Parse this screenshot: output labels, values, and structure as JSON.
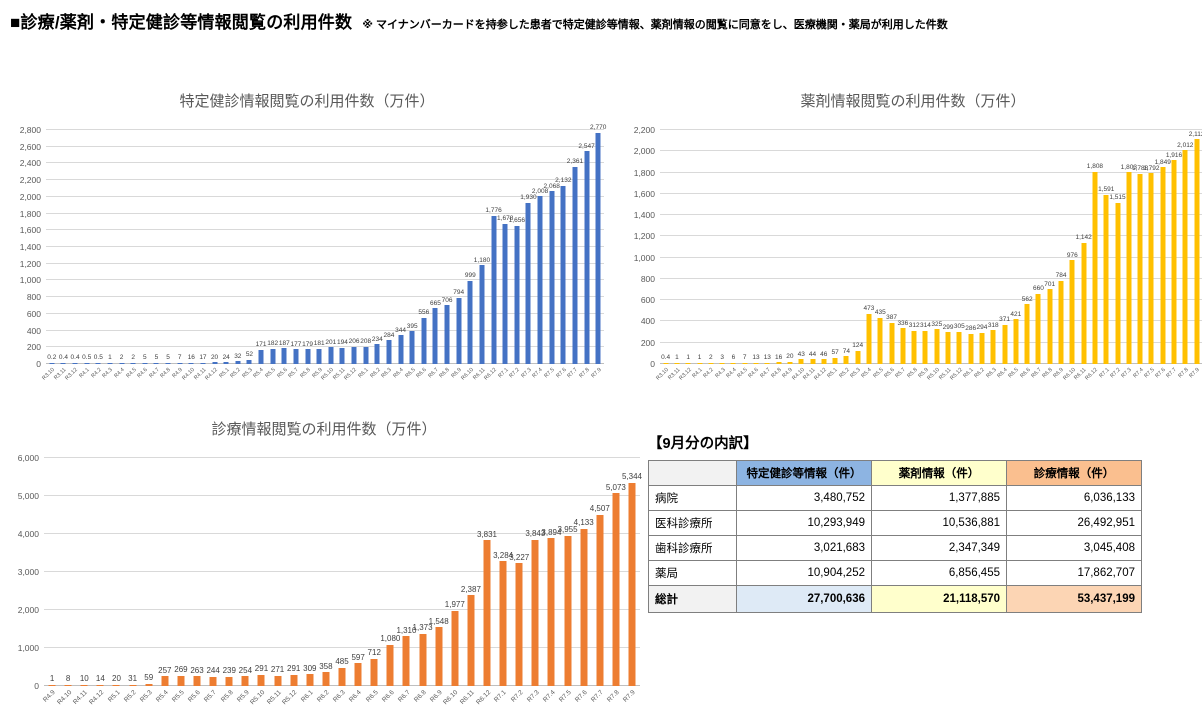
{
  "page": {
    "title": "■診療/薬剤・特定健診等情報閲覧の利用件数",
    "note": "※ マイナンバーカードを持参した患者で特定健診等情報、薬剤情報の閲覧に同意をし、医療機関・薬局が利用した件数"
  },
  "chart_data": [
    {
      "type": "bar",
      "title": "特定健診情報閲覧の利用件数（万件）",
      "color": "#4472C4",
      "ylim": [
        0,
        2800
      ],
      "ytick": 200,
      "grid": true,
      "categories": [
        "R3.10",
        "R3.11",
        "R3.12",
        "R4.1",
        "R4.2",
        "R4.3",
        "R4.4",
        "R4.5",
        "R4.6",
        "R4.7",
        "R4.8",
        "R4.9",
        "R4.10",
        "R4.11",
        "R4.12",
        "R5.1",
        "R5.2",
        "R5.3",
        "R5.4",
        "R5.5",
        "R5.6",
        "R5.7",
        "R5.8",
        "R5.9",
        "R5.10",
        "R5.11",
        "R5.12",
        "R6.1",
        "R6.2",
        "R6.3",
        "R6.4",
        "R6.5",
        "R6.6",
        "R6.7",
        "R6.8",
        "R6.9",
        "R6.10",
        "R6.11",
        "R6.12",
        "R7.1",
        "R7.2",
        "R7.3",
        "R7.4",
        "R7.5",
        "R7.6",
        "R7.7",
        "R7.8",
        "R7.9"
      ],
      "values": [
        0.2,
        0.4,
        0.4,
        0.5,
        0.5,
        1,
        2,
        2,
        5,
        5,
        5,
        7,
        16,
        17,
        20,
        24,
        32,
        52,
        171,
        182,
        187,
        177,
        179,
        181,
        201,
        194,
        206,
        208,
        234,
        284,
        344,
        395,
        556,
        665,
        706,
        794,
        999,
        1180,
        1776,
        1678,
        1656,
        1930,
        2008,
        2068,
        2132,
        2361,
        2547,
        2770
      ]
    },
    {
      "type": "bar",
      "title": "薬剤情報閲覧の利用件数（万件）",
      "color": "#FFC000",
      "ylim": [
        0,
        2200
      ],
      "ytick": 200,
      "grid": true,
      "categories": [
        "R3.10",
        "R3.11",
        "R3.12",
        "R4.1",
        "R4.2",
        "R4.3",
        "R4.4",
        "R4.5",
        "R4.6",
        "R4.7",
        "R4.8",
        "R4.9",
        "R4.10",
        "R4.11",
        "R4.12",
        "R5.1",
        "R5.2",
        "R5.3",
        "R5.4",
        "R5.5",
        "R5.6",
        "R5.7",
        "R5.8",
        "R5.9",
        "R5.10",
        "R5.11",
        "R5.12",
        "R6.1",
        "R6.2",
        "R6.3",
        "R6.4",
        "R6.5",
        "R6.6",
        "R6.7",
        "R6.8",
        "R6.9",
        "R6.10",
        "R6.11",
        "R6.12",
        "R7.1",
        "R7.2",
        "R7.3",
        "R7.4",
        "R7.5",
        "R7.6",
        "R7.7",
        "R7.8",
        "R7.9"
      ],
      "values": [
        0.4,
        1,
        1,
        1,
        2,
        3,
        6,
        7,
        13,
        13,
        16,
        20,
        43,
        44,
        46,
        57,
        74,
        124,
        473,
        435,
        387,
        336,
        312,
        314,
        325,
        299,
        305,
        286,
        294,
        318,
        371,
        421,
        562,
        660,
        701,
        784,
        976,
        1142,
        1808,
        1591,
        1515,
        1803,
        1788,
        1792,
        1849,
        1916,
        2012,
        2112
      ]
    },
    {
      "type": "bar",
      "title": "診療情報閲覧の利用件数（万件）",
      "color": "#ED7D31",
      "ylim": [
        0,
        6000
      ],
      "ytick": 1000,
      "grid": true,
      "categories": [
        "R4.9",
        "R4.10",
        "R4.11",
        "R4.12",
        "R5.1",
        "R5.2",
        "R5.3",
        "R5.4",
        "R5.5",
        "R5.6",
        "R5.7",
        "R5.8",
        "R5.9",
        "R5.10",
        "R5.11",
        "R5.12",
        "R6.1",
        "R6.2",
        "R6.3",
        "R6.4",
        "R6.5",
        "R6.6",
        "R6.7",
        "R6.8",
        "R6.9",
        "R6.10",
        "R6.11",
        "R6.12",
        "R7.1",
        "R7.2",
        "R7.3",
        "R7.4",
        "R7.5",
        "R7.6",
        "R7.7",
        "R7.8",
        "R7.9"
      ],
      "values": [
        1,
        8,
        10,
        14,
        20,
        31,
        59,
        257,
        269,
        263,
        244,
        239,
        254,
        291,
        271,
        291,
        309,
        358,
        485,
        597,
        712,
        1080,
        1310,
        1373,
        1548,
        1977,
        2387,
        3831,
        3284,
        3227,
        3843,
        3894,
        3955,
        4133,
        4507,
        5073,
        5344
      ]
    }
  ],
  "breakdown_table": {
    "title": "【9月分の内訳】",
    "columns": [
      "",
      "特定健診等情報（件）",
      "薬剤情報（件）",
      "診療情報（件）"
    ],
    "rows": [
      {
        "label": "病院",
        "values": [
          "3,480,752",
          "1,377,885",
          "6,036,133"
        ]
      },
      {
        "label": "医科診療所",
        "values": [
          "10,293,949",
          "10,536,881",
          "26,492,951"
        ]
      },
      {
        "label": "歯科診療所",
        "values": [
          "3,021,683",
          "2,347,349",
          "3,045,408"
        ]
      },
      {
        "label": "薬局",
        "values": [
          "10,904,252",
          "6,856,455",
          "17,862,707"
        ]
      }
    ],
    "total_row": {
      "label": "総計",
      "values": [
        "27,700,636",
        "21,118,570",
        "53,437,199"
      ]
    },
    "colors": {
      "header": [
        "#F2F2F2",
        "#8DB4E2",
        "#FFFFCC",
        "#FABF8F"
      ],
      "total": [
        "#F2F2F2",
        "#DEEAF6",
        "#FFFFCC",
        "#FCD5B4"
      ]
    }
  }
}
